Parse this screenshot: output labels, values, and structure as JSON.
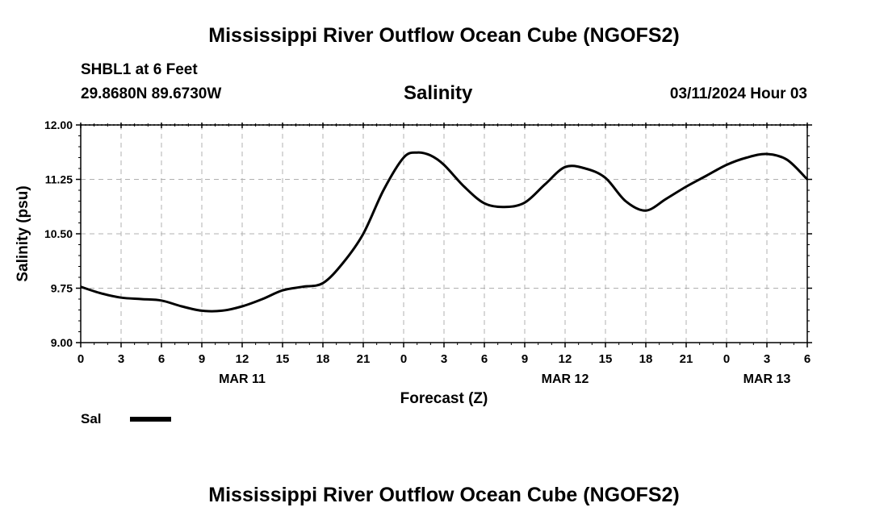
{
  "header": {
    "title": "Mississippi River Outflow Ocean Cube (NGOFS2)",
    "station": "SHBL1 at 6 Feet",
    "coords": "29.8680N  89.6730W",
    "chart_title": "Salinity",
    "timestamp": "03/11/2024 Hour 03"
  },
  "footer": {
    "title": "Mississippi River Outflow Ocean Cube (NGOFS2)"
  },
  "chart_data": {
    "type": "line",
    "title": "Salinity",
    "xlabel": "Forecast (Z)",
    "ylabel": "Salinity (psu)",
    "ylim": [
      9.0,
      12.0
    ],
    "xlim": [
      0,
      54
    ],
    "y_ticks": [
      "9.00",
      "9.75",
      "10.50",
      "11.25",
      "12.00"
    ],
    "x_ticks": [
      {
        "hour": 0,
        "label": "0"
      },
      {
        "hour": 3,
        "label": "3"
      },
      {
        "hour": 6,
        "label": "6"
      },
      {
        "hour": 9,
        "label": "9"
      },
      {
        "hour": 12,
        "label": "12"
      },
      {
        "hour": 15,
        "label": "15"
      },
      {
        "hour": 18,
        "label": "18"
      },
      {
        "hour": 21,
        "label": "21"
      },
      {
        "hour": 24,
        "label": "0"
      },
      {
        "hour": 27,
        "label": "3"
      },
      {
        "hour": 30,
        "label": "6"
      },
      {
        "hour": 33,
        "label": "9"
      },
      {
        "hour": 36,
        "label": "12"
      },
      {
        "hour": 39,
        "label": "15"
      },
      {
        "hour": 42,
        "label": "18"
      },
      {
        "hour": 45,
        "label": "21"
      },
      {
        "hour": 48,
        "label": "0"
      },
      {
        "hour": 51,
        "label": "3"
      },
      {
        "hour": 54,
        "label": "6"
      }
    ],
    "date_labels": [
      {
        "hour": 12,
        "label": "MAR 11"
      },
      {
        "hour": 36,
        "label": "MAR 12"
      },
      {
        "hour": 51,
        "label": "MAR 13"
      }
    ],
    "grid": true,
    "legend": {
      "label": "Sal",
      "position": "bottom-left"
    },
    "series": [
      {
        "name": "Sal",
        "x": [
          0,
          1.5,
          3,
          4.5,
          6,
          7.5,
          9,
          10.5,
          12,
          13.5,
          15,
          16.5,
          18,
          19.5,
          21,
          22.5,
          24,
          25,
          26,
          27,
          28.5,
          30,
          31.5,
          33,
          34.5,
          36,
          37.5,
          39,
          40.5,
          42,
          43.5,
          45,
          46.5,
          48,
          49.5,
          51,
          52.5,
          54
        ],
        "y": [
          9.77,
          9.68,
          9.62,
          9.6,
          9.58,
          9.5,
          9.44,
          9.44,
          9.5,
          9.6,
          9.72,
          9.77,
          9.82,
          10.1,
          10.5,
          11.1,
          11.55,
          11.62,
          11.58,
          11.45,
          11.15,
          10.92,
          10.87,
          10.93,
          11.18,
          11.42,
          11.4,
          11.27,
          10.95,
          10.82,
          10.98,
          11.15,
          11.3,
          11.45,
          11.55,
          11.6,
          11.52,
          11.25
        ]
      }
    ]
  }
}
